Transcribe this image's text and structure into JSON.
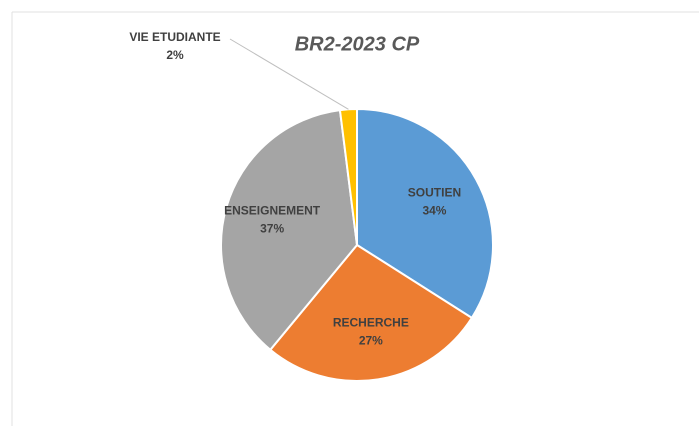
{
  "chart_data": {
    "type": "pie",
    "title": "BR2-2023 CP",
    "categories": [
      "SOUTIEN",
      "RECHERCHE",
      "ENSEIGNEMENT",
      "VIE ETUDIANTE"
    ],
    "values": [
      34,
      27,
      37,
      2
    ],
    "value_labels": [
      "34%",
      "27%",
      "37%",
      "2%"
    ],
    "colors": [
      "#5b9bd5",
      "#ed7d31",
      "#a5a5a5",
      "#ffc000"
    ]
  }
}
